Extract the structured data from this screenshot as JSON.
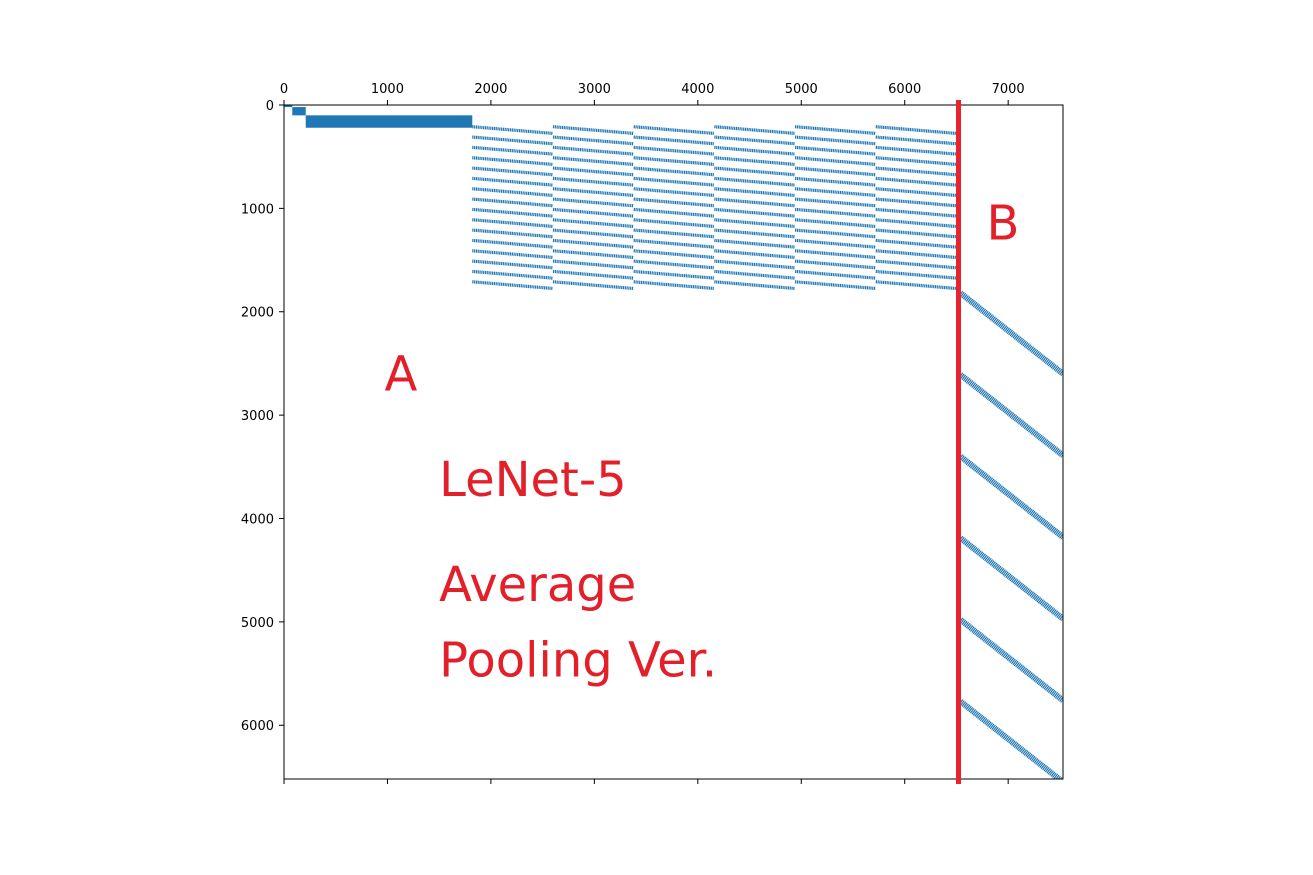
{
  "chart_data": {
    "type": "scatter",
    "title": "",
    "xlabel": "",
    "ylabel": "",
    "xlim": [
      0,
      7530
    ],
    "ylim": [
      6520,
      0
    ],
    "x_axis_position": "top",
    "y_axis_inverted": true,
    "grid": false,
    "x_ticks": [
      "0",
      "1000",
      "2000",
      "3000",
      "4000",
      "5000",
      "6000",
      "7000"
    ],
    "x_tick_values": [
      0,
      1000,
      2000,
      3000,
      4000,
      5000,
      6000,
      7000
    ],
    "y_ticks": [
      "0",
      "1000",
      "2000",
      "3000",
      "4000",
      "5000",
      "6000"
    ],
    "y_tick_values": [
      0,
      1000,
      2000,
      3000,
      4000,
      5000,
      6000
    ],
    "marker_color": "#1f77b4",
    "blocks": [
      {
        "x": [
          0,
          80
        ],
        "y": [
          0,
          20
        ]
      },
      {
        "x": [
          80,
          210
        ],
        "y": [
          20,
          100
        ]
      },
      {
        "x": [
          210,
          1820
        ],
        "y": [
          100,
          220
        ]
      }
    ],
    "band_group": {
      "x_start": 1820,
      "x_end": 6520,
      "col_width": 780,
      "y_start": 210,
      "y_step": 100,
      "rows": 16,
      "drop": 65
    },
    "diag_group": {
      "x_start": 6520,
      "x_end": 7530,
      "y_start": 1820,
      "y_step": 790,
      "rows": 6,
      "drop": 780
    },
    "divider": {
      "x": 6520,
      "color": "#e8232d"
    },
    "annotations": [
      {
        "id": "label-a",
        "text": "A",
        "x": 1130,
        "y": 2760
      },
      {
        "id": "label-b",
        "text": "B",
        "x": 6950,
        "y": 1300
      },
      {
        "id": "label-model",
        "text": "LeNet-5",
        "x": 1500,
        "y": 3780
      },
      {
        "id": "label-pooling-1",
        "text": "Average",
        "x": 1500,
        "y": 4800
      },
      {
        "id": "label-pooling-2",
        "text": "Pooling Ver.",
        "x": 1500,
        "y": 5530
      }
    ],
    "annotation_color": "#e3202a"
  }
}
